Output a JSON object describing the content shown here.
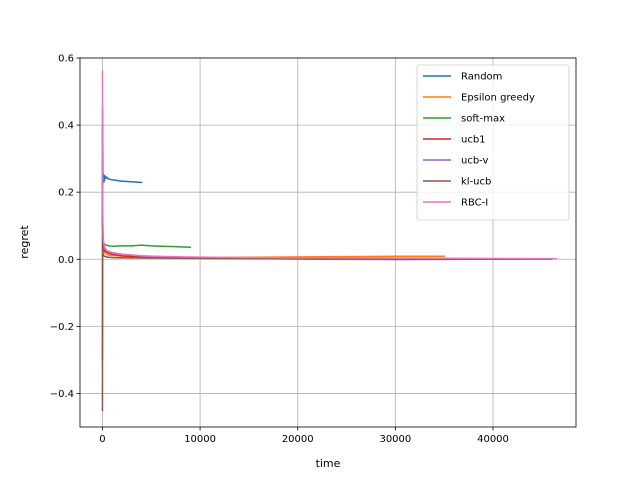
{
  "chart_data": {
    "type": "line",
    "title": "",
    "xlabel": "time",
    "ylabel": "regret",
    "xlim": [
      -2300,
      48500
    ],
    "ylim": [
      -0.5,
      0.6
    ],
    "xticks": [
      0,
      10000,
      20000,
      30000,
      40000
    ],
    "xtick_labels": [
      "0",
      "10000",
      "20000",
      "30000",
      "40000"
    ],
    "yticks": [
      -0.4,
      -0.2,
      0.0,
      0.2,
      0.4,
      0.6
    ],
    "ytick_labels": [
      "−0.4",
      "−0.2",
      "0.0",
      "0.2",
      "0.4",
      "0.6"
    ],
    "grid": true,
    "legend_position": "upper-right",
    "series": [
      {
        "name": "Random",
        "color": "#1f77b4",
        "x": [
          0,
          10,
          50,
          150,
          250,
          350,
          450,
          600,
          800,
          1000,
          1300,
          1600,
          2000,
          2500,
          3000,
          3500,
          4000
        ],
        "y": [
          0.1,
          0.45,
          0.26,
          0.23,
          0.25,
          0.24,
          0.245,
          0.24,
          0.238,
          0.237,
          0.236,
          0.234,
          0.233,
          0.232,
          0.231,
          0.23,
          0.229
        ]
      },
      {
        "name": "Epsilon greedy",
        "color": "#ff7f0e",
        "x": [
          0,
          20,
          50,
          100,
          200,
          400,
          800,
          1500,
          3000,
          6000,
          10000,
          15000,
          20000,
          25000,
          30000,
          35000
        ],
        "y": [
          0.3,
          0.1,
          0.05,
          0.03,
          0.02,
          0.015,
          0.012,
          0.01,
          0.008,
          0.006,
          0.005,
          0.006,
          0.007,
          0.008,
          0.009,
          0.009
        ]
      },
      {
        "name": "soft-max",
        "color": "#2ca02c",
        "x": [
          0,
          20,
          50,
          100,
          200,
          400,
          700,
          1000,
          2000,
          3000,
          4000,
          5000,
          6000,
          7000,
          8000,
          9000
        ],
        "y": [
          0.4,
          0.12,
          0.07,
          0.05,
          0.045,
          0.042,
          0.04,
          0.039,
          0.04,
          0.04,
          0.042,
          0.04,
          0.039,
          0.038,
          0.037,
          0.036
        ]
      },
      {
        "name": "ucb1",
        "color": "#d62728",
        "x": [
          0,
          20,
          50,
          100,
          200,
          500,
          1000,
          2000,
          4000,
          8000,
          15000,
          25000,
          35000,
          46000
        ],
        "y": [
          -0.3,
          0.15,
          0.05,
          0.03,
          0.025,
          0.02,
          0.015,
          0.01,
          0.007,
          0.005,
          0.003,
          0.002,
          0.001,
          0.001
        ]
      },
      {
        "name": "ucb-v",
        "color": "#9467bd",
        "x": [
          0,
          20,
          50,
          100,
          200,
          500,
          1000,
          2000,
          4000,
          8000,
          15000,
          22000,
          30000,
          38000,
          46000
        ],
        "y": [
          0.2,
          0.08,
          0.05,
          0.04,
          0.03,
          0.025,
          0.02,
          0.015,
          0.01,
          0.005,
          0.002,
          0.0,
          -0.001,
          0.0,
          0.001
        ]
      },
      {
        "name": "kl-ucb",
        "color": "#8c564b",
        "x": [
          0,
          10,
          20,
          40,
          80,
          150,
          300,
          600,
          1200,
          3000,
          8000,
          15000,
          25000,
          35000,
          46000
        ],
        "y": [
          -0.45,
          0.3,
          0.05,
          0.02,
          0.015,
          0.01,
          0.008,
          0.006,
          0.005,
          0.004,
          0.003,
          0.002,
          0.002,
          0.001,
          0.001
        ]
      },
      {
        "name": "RBC-I",
        "color": "#e377c2",
        "x": [
          0,
          10,
          30,
          60,
          120,
          250,
          500,
          1000,
          2000,
          4000,
          8000,
          15000,
          25000,
          35000,
          46500
        ],
        "y": [
          0.56,
          0.3,
          0.15,
          0.08,
          0.05,
          0.035,
          0.025,
          0.02,
          0.015,
          0.01,
          0.007,
          0.005,
          0.004,
          0.003,
          0.002
        ]
      }
    ]
  }
}
